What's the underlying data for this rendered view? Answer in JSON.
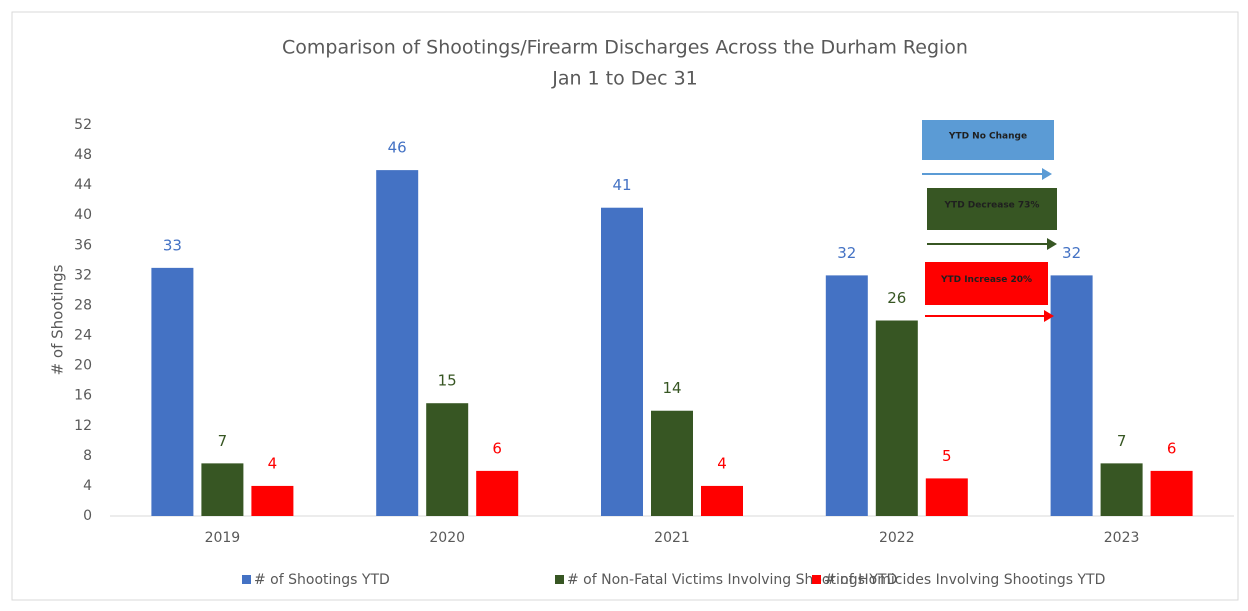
{
  "chart_data": {
    "type": "bar",
    "title": "Comparison of Shootings/Firearm Discharges Across the Durham Region",
    "subtitle": "Jan 1 to Dec 31",
    "y_label": "# of Shootings",
    "categories": [
      "2019",
      "2020",
      "2021",
      "2022",
      "2023"
    ],
    "series": [
      {
        "name": "# of Shootings YTD",
        "color": "#4472c4",
        "values": [
          33,
          46,
          41,
          32,
          32
        ]
      },
      {
        "name": "# of Non-Fatal Victims Involving Shootings YTD",
        "color": "#375623",
        "values": [
          7,
          15,
          14,
          26,
          7
        ]
      },
      {
        "name": "# of Homicides Involving Shootings YTD",
        "color": "#ff0000",
        "values": [
          4,
          6,
          4,
          5,
          6
        ]
      }
    ],
    "ylim": [
      0,
      52
    ],
    "yticks": [
      0,
      4,
      8,
      12,
      16,
      20,
      24,
      28,
      32,
      36,
      40,
      44,
      48,
      52
    ],
    "grid": false,
    "legend": "bottom",
    "annotations": [
      {
        "text": "YTD No Change",
        "color": "#5b9bd5"
      },
      {
        "text": "YTD Decrease 73%",
        "color": "#375623"
      },
      {
        "text": "YTD Increase 20%",
        "color": "#ff0000"
      }
    ]
  }
}
